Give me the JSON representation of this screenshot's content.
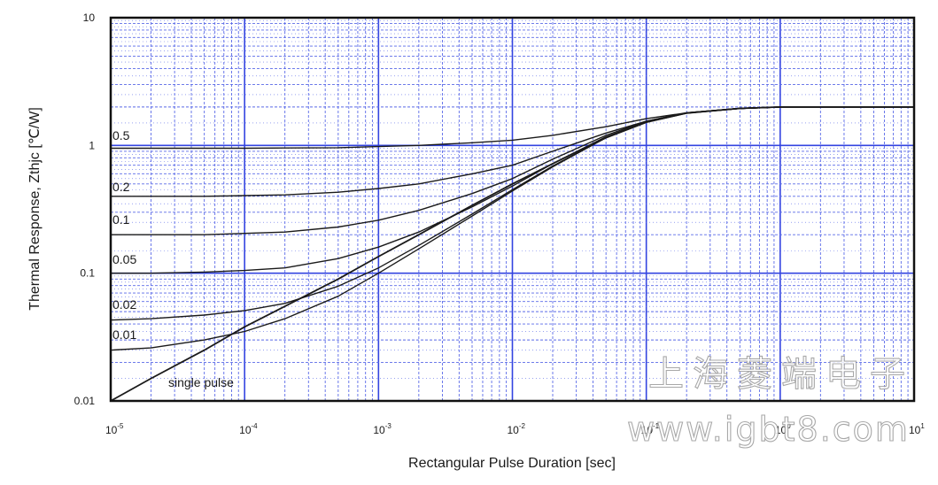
{
  "chart_data": {
    "type": "line",
    "xlabel": "Rectangular Pulse Duration [sec]",
    "ylabel": "Thermal Response, Zthjc [℃/W]",
    "xscale": "log",
    "yscale": "log",
    "xlim": [
      1e-05,
      10
    ],
    "ylim": [
      0.01,
      10
    ],
    "grid": true,
    "x_ticks": [
      {
        "base": "10",
        "exp": "-5"
      },
      {
        "base": "10",
        "exp": "-4"
      },
      {
        "base": "10",
        "exp": "-3"
      },
      {
        "base": "10",
        "exp": "-2"
      },
      {
        "base": "10",
        "exp": "-1"
      },
      {
        "base": "10",
        "exp": "0"
      },
      {
        "base": "10",
        "exp": "1"
      }
    ],
    "y_ticks": [
      "0.01",
      "0.1",
      "1",
      "10"
    ],
    "x": [
      1e-05,
      2e-05,
      5e-05,
      0.0001,
      0.0002,
      0.0005,
      0.001,
      0.002,
      0.005,
      0.01,
      0.02,
      0.05,
      0.1,
      0.2,
      0.5,
      1,
      2,
      5,
      10
    ],
    "series": [
      {
        "name": "0.5",
        "values": [
          0.95,
          0.95,
          0.95,
          0.95,
          0.955,
          0.96,
          0.98,
          1.0,
          1.05,
          1.1,
          1.2,
          1.4,
          1.62,
          1.8,
          1.95,
          2.0,
          2.0,
          2.0,
          2.0
        ]
      },
      {
        "name": "0.2",
        "values": [
          0.4,
          0.4,
          0.4,
          0.405,
          0.41,
          0.43,
          0.46,
          0.5,
          0.6,
          0.7,
          0.9,
          1.25,
          1.55,
          1.8,
          1.95,
          2.0,
          2.0,
          2.0,
          2.0
        ]
      },
      {
        "name": "0.1",
        "values": [
          0.2,
          0.2,
          0.2,
          0.205,
          0.21,
          0.23,
          0.26,
          0.31,
          0.42,
          0.55,
          0.78,
          1.2,
          1.55,
          1.8,
          1.95,
          2.0,
          2.0,
          2.0,
          2.0
        ]
      },
      {
        "name": "0.05",
        "values": [
          0.1,
          0.1,
          0.102,
          0.105,
          0.11,
          0.13,
          0.16,
          0.21,
          0.33,
          0.48,
          0.72,
          1.17,
          1.53,
          1.79,
          1.95,
          2.0,
          2.0,
          2.0,
          2.0
        ]
      },
      {
        "name": "0.02",
        "values": [
          0.043,
          0.044,
          0.047,
          0.051,
          0.058,
          0.079,
          0.11,
          0.165,
          0.29,
          0.45,
          0.69,
          1.15,
          1.52,
          1.79,
          1.95,
          2.0,
          2.0,
          2.0,
          2.0
        ]
      },
      {
        "name": "0.01",
        "values": [
          0.025,
          0.026,
          0.03,
          0.035,
          0.044,
          0.066,
          0.1,
          0.155,
          0.28,
          0.44,
          0.68,
          1.15,
          1.52,
          1.79,
          1.95,
          2.0,
          2.0,
          2.0,
          2.0
        ]
      },
      {
        "name": "single pulse",
        "values": [
          0.01,
          0.015,
          0.025,
          0.038,
          0.055,
          0.09,
          0.135,
          0.2,
          0.34,
          0.5,
          0.72,
          1.15,
          1.52,
          1.79,
          1.95,
          2.0,
          2.0,
          2.0,
          2.0
        ]
      }
    ]
  },
  "watermark": {
    "line1": "上海菱端电子",
    "line2": "www.igbt8.com"
  },
  "colors": {
    "grid": "#3344e0",
    "grid_minor": "#5a6ae8",
    "curve": "#1a1a1a",
    "frame": "#111111",
    "label_text": "#1a1a1a"
  }
}
